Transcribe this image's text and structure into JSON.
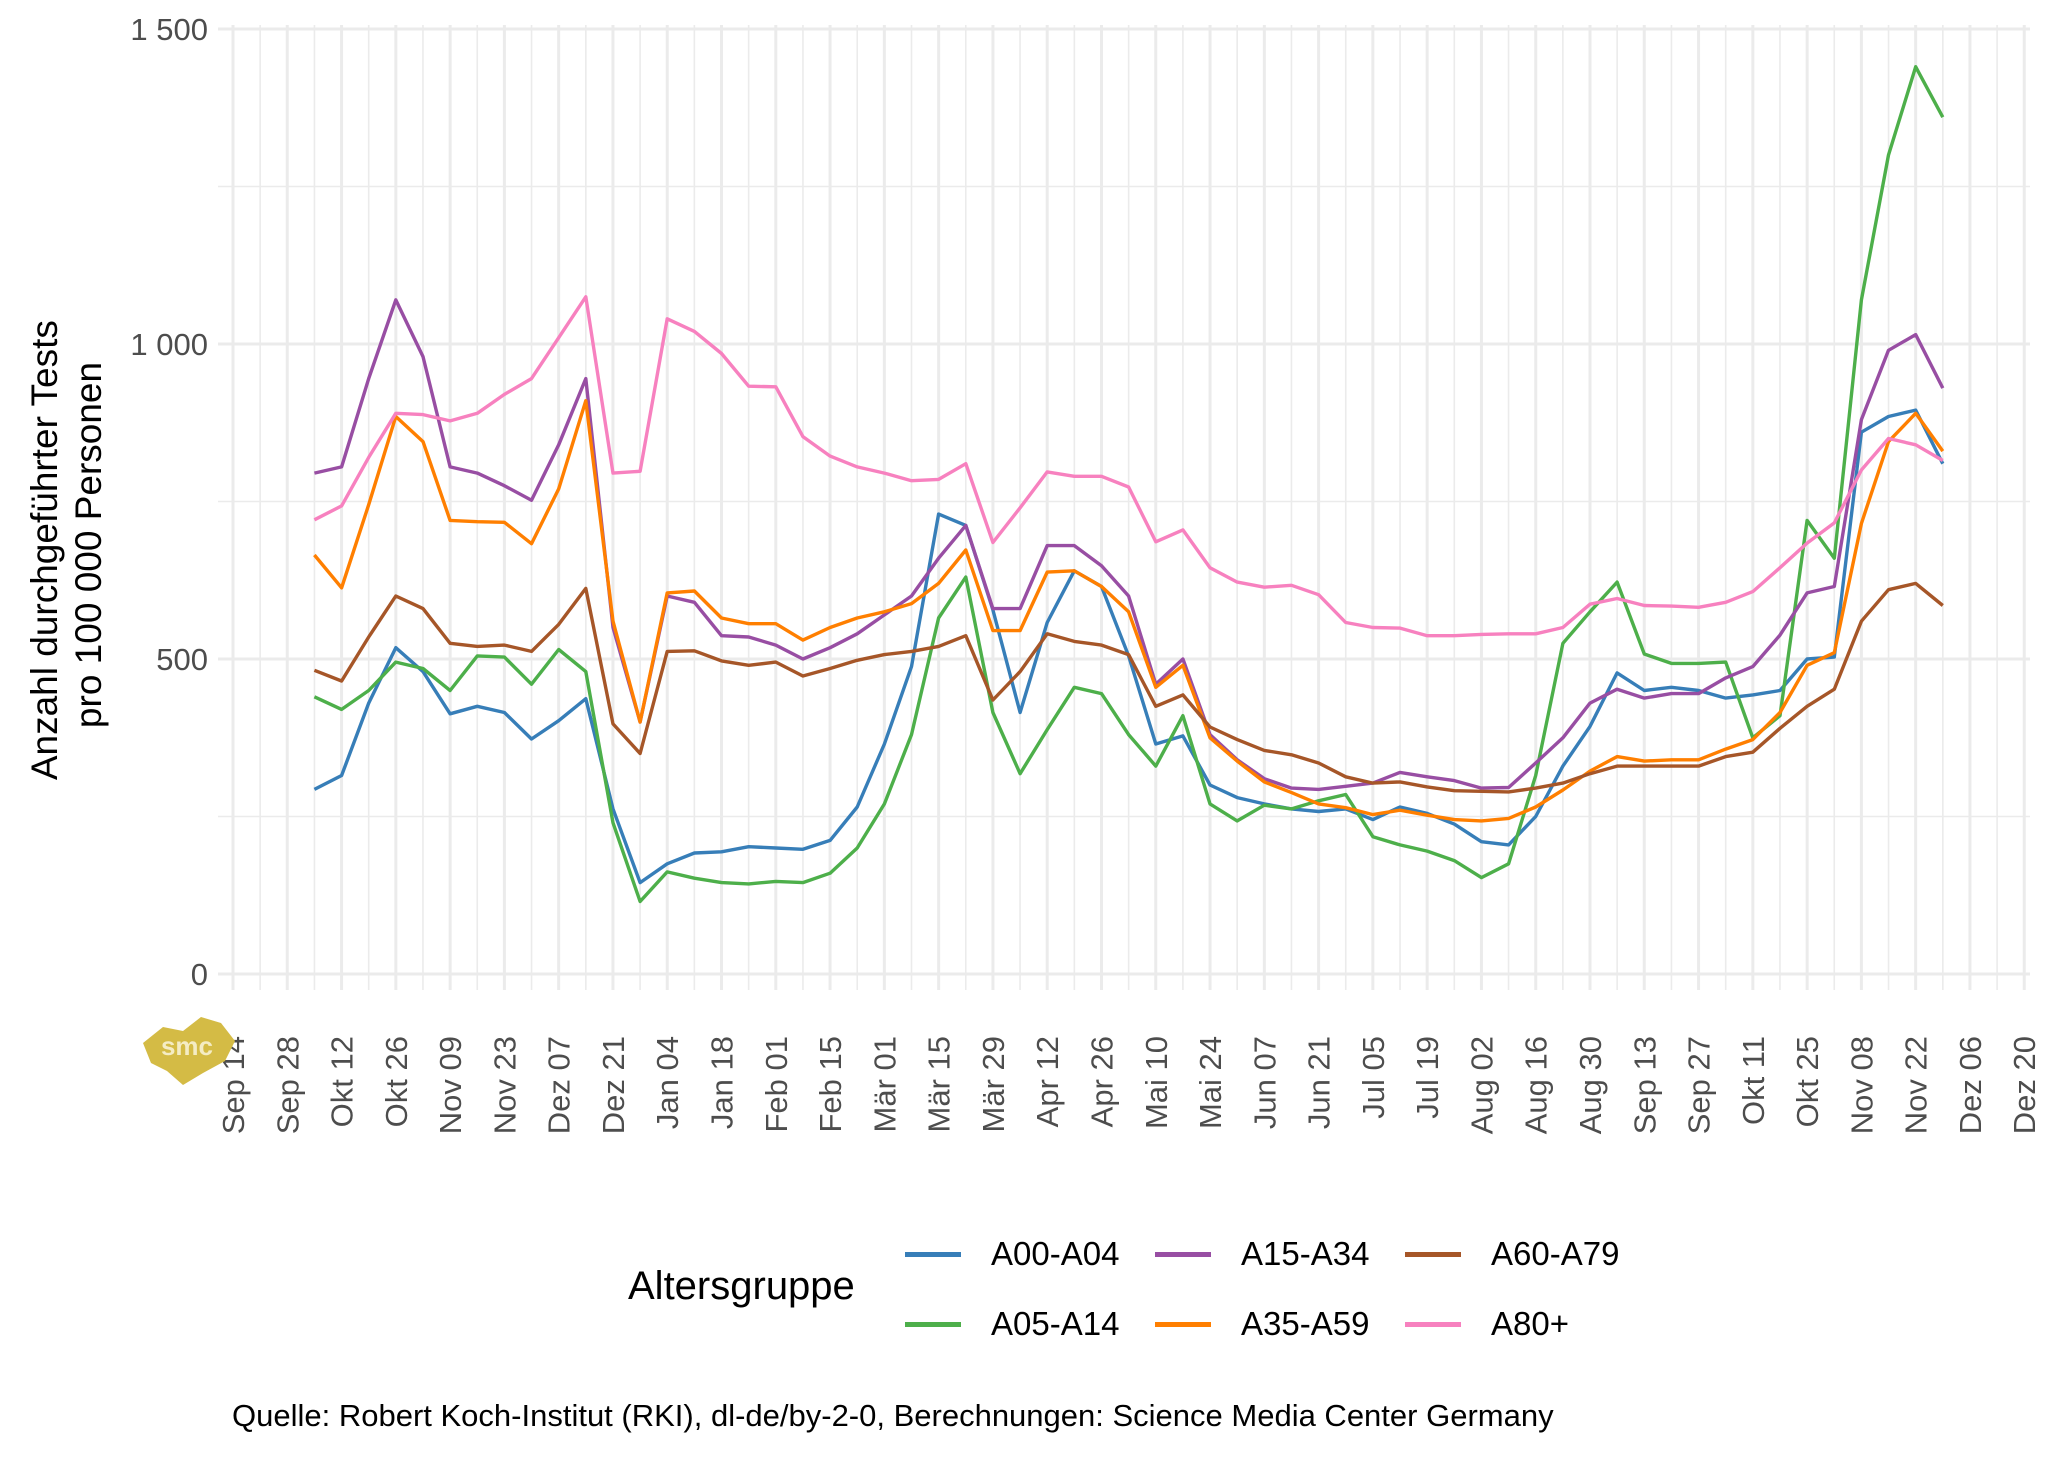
{
  "chart_data": {
    "type": "line",
    "title": "",
    "ylabel": [
      "Anzahl durchgeführter Tests",
      "pro 100 000 Personen"
    ],
    "xlabel": "",
    "ylim": [
      0,
      1500
    ],
    "yticks": [
      0,
      500,
      1000,
      1500
    ],
    "ytick_labels": [
      "0",
      "500",
      "1 000",
      "1 500"
    ],
    "xtick_labels": [
      "Sep 14",
      "Sep 28",
      "Okt 12",
      "Okt 26",
      "Nov 09",
      "Nov 23",
      "Dez 07",
      "Dez 21",
      "Jan 04",
      "Jan 18",
      "Feb 01",
      "Feb 15",
      "Mär 01",
      "Mär 15",
      "Mär 29",
      "Apr 12",
      "Apr 26",
      "Mai 10",
      "Mai 24",
      "Jun 07",
      "Jun 21",
      "Jul 05",
      "Jul 19",
      "Aug 02",
      "Aug 16",
      "Aug 30",
      "Sep 13",
      "Sep 27",
      "Okt 11",
      "Okt 25",
      "Nov 08",
      "Nov 22",
      "Dez 06",
      "Dez 20"
    ],
    "x_week_range": [
      0,
      66
    ],
    "x_start_week": 3,
    "grid": true,
    "legend_title": "Altersgruppe",
    "legend_position": "bottom",
    "series": [
      {
        "name": "A00-A04",
        "color": "#377eb8",
        "values": [
          293,
          315,
          430,
          518,
          480,
          413,
          425,
          415,
          373,
          402,
          437,
          262,
          145,
          175,
          192,
          194,
          202,
          200,
          198,
          212,
          265,
          365,
          488,
          730,
          712,
          578,
          415,
          558,
          640,
          615,
          505,
          365,
          378,
          300,
          280,
          270,
          262,
          258,
          262,
          245,
          265,
          255,
          238,
          210,
          205,
          250,
          330,
          393,
          478,
          450,
          455,
          450,
          438,
          443,
          450,
          500,
          503,
          860,
          885,
          895,
          810
        ]
      },
      {
        "name": "A05-A14",
        "color": "#4daf4a",
        "values": [
          440,
          420,
          450,
          495,
          485,
          450,
          505,
          503,
          460,
          515,
          480,
          240,
          115,
          162,
          152,
          145,
          143,
          147,
          145,
          160,
          200,
          270,
          380,
          565,
          630,
          415,
          318,
          388,
          455,
          445,
          380,
          330,
          410,
          270,
          243,
          268,
          262,
          275,
          285,
          218,
          205,
          195,
          180,
          153,
          175,
          315,
          525,
          575,
          622,
          508,
          493,
          493,
          495,
          375,
          410,
          720,
          660,
          1070,
          1300,
          1440,
          1360
        ]
      },
      {
        "name": "A15-A34",
        "color": "#984ea3",
        "values": [
          795,
          805,
          945,
          1070,
          980,
          805,
          795,
          775,
          752,
          840,
          945,
          550,
          400,
          600,
          590,
          537,
          535,
          522,
          500,
          518,
          540,
          570,
          600,
          660,
          712,
          580,
          580,
          680,
          680,
          648,
          600,
          460,
          500,
          380,
          340,
          310,
          295,
          293,
          298,
          303,
          320,
          313,
          307,
          295,
          296,
          335,
          375,
          430,
          452,
          438,
          445,
          445,
          470,
          488,
          538,
          605,
          615,
          880,
          990,
          1015,
          930
        ]
      },
      {
        "name": "A35-A59",
        "color": "#ff7f00",
        "values": [
          665,
          613,
          745,
          885,
          845,
          720,
          718,
          717,
          683,
          770,
          910,
          560,
          400,
          605,
          608,
          565,
          556,
          556,
          530,
          550,
          565,
          575,
          588,
          620,
          673,
          545,
          545,
          638,
          640,
          615,
          575,
          455,
          490,
          375,
          338,
          305,
          288,
          270,
          264,
          253,
          260,
          252,
          245,
          243,
          247,
          265,
          292,
          322,
          345,
          338,
          340,
          340,
          357,
          372,
          415,
          490,
          510,
          715,
          845,
          890,
          830
        ]
      },
      {
        "name": "A60-A79",
        "color": "#a65628",
        "values": [
          482,
          465,
          535,
          600,
          580,
          525,
          520,
          522,
          512,
          555,
          612,
          397,
          350,
          512,
          513,
          497,
          490,
          495,
          473,
          485,
          498,
          507,
          512,
          520,
          537,
          435,
          480,
          540,
          528,
          522,
          507,
          425,
          443,
          392,
          372,
          355,
          348,
          335,
          313,
          303,
          305,
          297,
          291,
          290,
          289,
          295,
          303,
          318,
          330,
          330,
          330,
          330,
          345,
          352,
          390,
          425,
          452,
          560,
          610,
          620,
          585
        ]
      },
      {
        "name": "A80+",
        "color": "#f781bf",
        "values": [
          721,
          743,
          820,
          890,
          888,
          878,
          890,
          920,
          945,
          1010,
          1075,
          795,
          798,
          1040,
          1020,
          985,
          933,
          932,
          853,
          822,
          805,
          795,
          783,
          785,
          810,
          685,
          740,
          797,
          790,
          790,
          773,
          686,
          705,
          645,
          622,
          614,
          617,
          602,
          558,
          550,
          549,
          537,
          537,
          539,
          540,
          540,
          550,
          587,
          596,
          585,
          584,
          582,
          590,
          607,
          645,
          684,
          716,
          800,
          850,
          840,
          815
        ]
      }
    ],
    "caption": "Quelle: Robert Koch-Institut (RKI), dl-de/by-2-0, Berechnungen: Science Media Center Germany"
  },
  "logo": {
    "text": "smc",
    "color": "#d4bb45"
  }
}
